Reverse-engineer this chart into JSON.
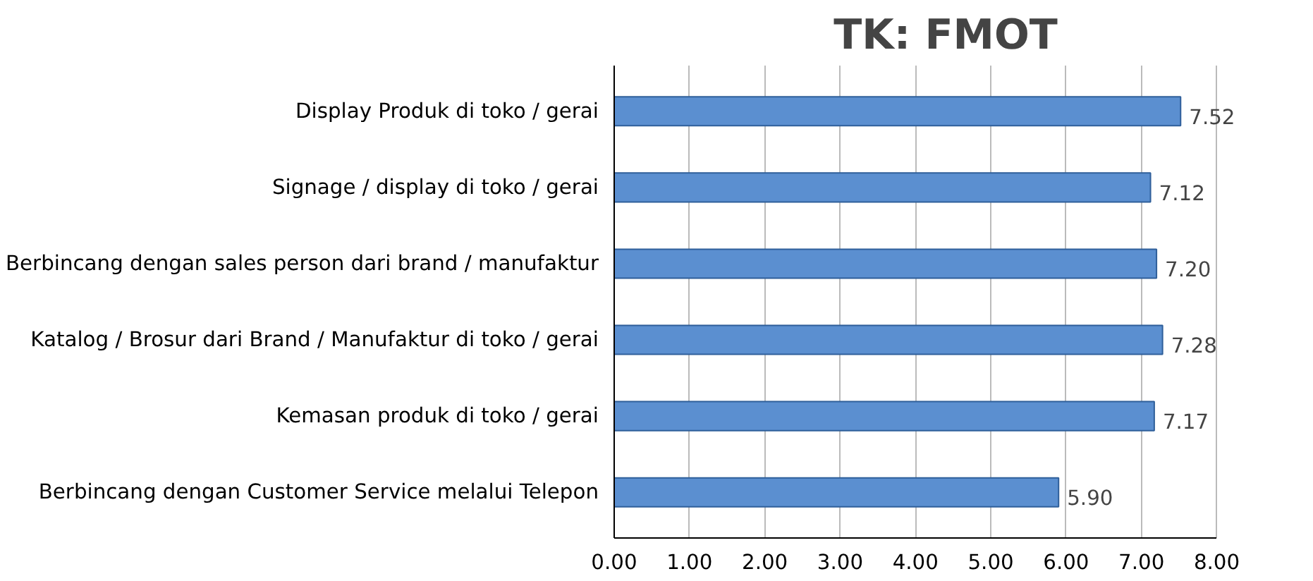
{
  "chart_data": {
    "type": "bar",
    "orientation": "horizontal",
    "title": "TK: FMOT",
    "categories": [
      "Display Produk di toko / gerai",
      "Signage / display di toko / gerai",
      "Berbincang dengan sales person dari brand / manufaktur",
      "Katalog / Brosur dari Brand / Manufaktur di toko / gerai",
      "Kemasan produk di toko / gerai",
      "Berbincang dengan Customer Service melalui Telepon"
    ],
    "values": [
      7.52,
      7.12,
      7.2,
      7.28,
      7.17,
      5.9
    ],
    "value_labels": [
      "7.52",
      "7.12",
      "7.20",
      "7.28",
      "7.17",
      "5.90"
    ],
    "color": "#5b8fd0",
    "xlim": [
      0,
      8
    ],
    "xticks": [
      {
        "value": 0,
        "label": "0.00"
      },
      {
        "value": 1,
        "label": "1.00"
      },
      {
        "value": 2,
        "label": "2.00"
      },
      {
        "value": 3,
        "label": "3.00"
      },
      {
        "value": 4,
        "label": "4.00"
      },
      {
        "value": 5,
        "label": "5.00"
      },
      {
        "value": 6,
        "label": "6.00"
      },
      {
        "value": 7,
        "label": "7.00"
      },
      {
        "value": 8,
        "label": "8.00"
      }
    ],
    "grid": "x"
  }
}
